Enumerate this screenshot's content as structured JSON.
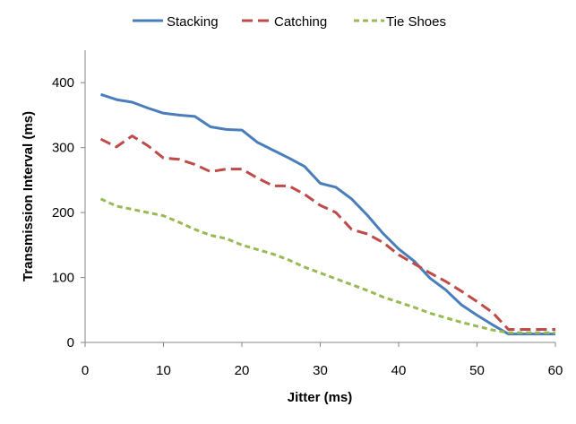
{
  "chart_data": {
    "type": "line",
    "title": "",
    "xlabel": "Jitter (ms)",
    "ylabel": "Transmission Interval (ms)",
    "xlim": [
      0,
      60
    ],
    "ylim": [
      0,
      450
    ],
    "xticks": [
      0,
      10,
      20,
      30,
      40,
      50,
      60
    ],
    "yticks": [
      0,
      100,
      200,
      300,
      400
    ],
    "grid": false,
    "legend_position": "top",
    "x": [
      2,
      4,
      6,
      8,
      10,
      12,
      14,
      16,
      18,
      20,
      22,
      24,
      26,
      28,
      30,
      32,
      34,
      36,
      38,
      40,
      42,
      44,
      46,
      48,
      50,
      52,
      54,
      56,
      58,
      60
    ],
    "series": [
      {
        "name": "Stacking",
        "color": "#4a7ebb",
        "dash": "solid",
        "values": [
          382,
          374,
          370,
          361,
          353,
          350,
          348,
          332,
          328,
          327,
          308,
          296,
          284,
          271,
          245,
          239,
          221,
          196,
          168,
          144,
          125,
          99,
          81,
          58,
          42,
          27,
          13,
          13,
          13,
          13
        ]
      },
      {
        "name": "Catching",
        "color": "#be4b48",
        "dash": "long-dash",
        "values": [
          313,
          301,
          318,
          303,
          284,
          282,
          274,
          263,
          267,
          267,
          253,
          241,
          241,
          228,
          211,
          200,
          174,
          167,
          154,
          135,
          121,
          107,
          94,
          79,
          63,
          46,
          20,
          20,
          20,
          20
        ]
      },
      {
        "name": "Tie Shoes",
        "color": "#98b954",
        "dash": "short-dash",
        "values": [
          221,
          210,
          205,
          200,
          195,
          185,
          174,
          165,
          160,
          150,
          143,
          136,
          127,
          116,
          107,
          98,
          89,
          80,
          70,
          62,
          54,
          45,
          38,
          31,
          25,
          19,
          15,
          15,
          15,
          15
        ]
      }
    ]
  }
}
